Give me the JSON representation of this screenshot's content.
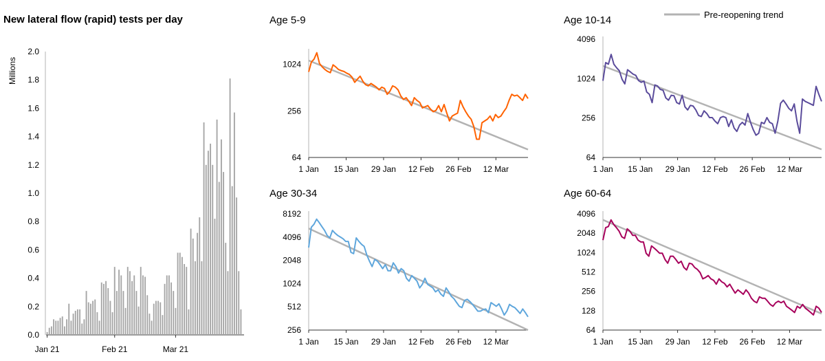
{
  "legend": {
    "label": "Pre-reopening trend",
    "color": "#b3b3b3"
  },
  "chart_data": [
    {
      "type": "bar",
      "title": "New lateral flow (rapid) tests per day",
      "ylabel": "Millions",
      "xlabel": "",
      "ylim": [
        0,
        2.0
      ],
      "yticks": [
        0.0,
        0.2,
        0.4,
        0.6,
        0.8,
        1.0,
        1.2,
        1.4,
        1.6,
        1.8,
        2.0
      ],
      "xticks": [
        "Jan 21",
        "Feb 21",
        "Mar 21"
      ],
      "color": "#a6a6a6",
      "start_date": "2021-01-01",
      "values": [
        0.02,
        0.05,
        0.06,
        0.11,
        0.1,
        0.1,
        0.12,
        0.13,
        0.06,
        0.11,
        0.22,
        0.1,
        0.15,
        0.17,
        0.18,
        0.18,
        0.08,
        0.11,
        0.31,
        0.23,
        0.22,
        0.24,
        0.25,
        0.16,
        0.1,
        0.37,
        0.36,
        0.38,
        0.33,
        0.24,
        0.16,
        0.48,
        0.31,
        0.46,
        0.42,
        0.31,
        0.19,
        0.48,
        0.45,
        0.38,
        0.42,
        0.31,
        0.2,
        0.48,
        0.42,
        0.41,
        0.28,
        0.15,
        0.1,
        0.22,
        0.24,
        0.24,
        0.23,
        0.14,
        0.36,
        0.42,
        0.42,
        0.37,
        0.31,
        0.19,
        0.58,
        0.58,
        0.55,
        0.5,
        0.48,
        0.18,
        0.75,
        0.68,
        0.52,
        0.72,
        0.83,
        0.52,
        1.5,
        1.2,
        1.3,
        1.35,
        1.2,
        0.82,
        1.52,
        1.08,
        1.38,
        1.15,
        0.65,
        0.45,
        1.81,
        1.05,
        1.57,
        0.97,
        0.45,
        0.18
      ],
      "grid": false
    },
    {
      "type": "line",
      "title": "Age 5-9",
      "scale": "log2",
      "ylim": [
        64,
        1500
      ],
      "yticks": [
        64,
        256,
        1024
      ],
      "xticks": [
        "1 Jan",
        "15 Jan",
        "29 Jan",
        "12 Feb",
        "26 Feb",
        "12 Mar"
      ],
      "xtick_days": [
        0,
        14,
        28,
        42,
        56,
        70
      ],
      "xlim_days": [
        0,
        82
      ],
      "color": "#ff6200",
      "values": [
        820,
        1100,
        1200,
        1450,
        1050,
        950,
        880,
        830,
        800,
        1010,
        950,
        880,
        850,
        830,
        790,
        760,
        700,
        600,
        660,
        720,
        620,
        560,
        540,
        580,
        550,
        520,
        480,
        520,
        500,
        420,
        460,
        540,
        520,
        480,
        400,
        360,
        380,
        340,
        300,
        380,
        350,
        330,
        280,
        290,
        300,
        270,
        250,
        260,
        300,
        250,
        310,
        240,
        190,
        220,
        230,
        240,
        350,
        290,
        250,
        220,
        200,
        160,
        110,
        110,
        180,
        190,
        200,
        220,
        190,
        230,
        210,
        220,
        250,
        280,
        350,
        420,
        400,
        410,
        380,
        350,
        420,
        370
      ],
      "trend": {
        "name": "Pre-reopening trend",
        "start": 1150,
        "end": 81
      },
      "grid": false
    },
    {
      "type": "line",
      "title": "Age 10-14",
      "scale": "log2",
      "ylim": [
        64,
        4096
      ],
      "yticks": [
        64,
        256,
        1024,
        4096
      ],
      "xticks": [
        "1 Jan",
        "15 Jan",
        "29 Jan",
        "12 Feb",
        "26 Feb",
        "12 Mar"
      ],
      "xtick_days": [
        0,
        14,
        28,
        42,
        56,
        70
      ],
      "xlim_days": [
        0,
        82
      ],
      "color": "#5a4b9b",
      "values": [
        950,
        1800,
        1700,
        2400,
        1700,
        1500,
        1350,
        1000,
        850,
        1400,
        1300,
        1200,
        1150,
        960,
        900,
        940,
        640,
        590,
        440,
        820,
        790,
        700,
        680,
        520,
        480,
        570,
        560,
        440,
        420,
        570,
        380,
        340,
        400,
        390,
        340,
        280,
        270,
        330,
        300,
        260,
        260,
        230,
        210,
        260,
        270,
        260,
        190,
        240,
        180,
        160,
        200,
        220,
        200,
        300,
        220,
        170,
        140,
        150,
        220,
        210,
        260,
        220,
        210,
        150,
        230,
        430,
        480,
        420,
        360,
        330,
        420,
        230,
        150,
        500,
        460,
        440,
        420,
        400,
        780,
        590,
        460
      ],
      "trend": {
        "name": "Pre-reopening trend",
        "start": 1600,
        "end": 85
      },
      "grid": false
    },
    {
      "type": "line",
      "title": "Age 30-34",
      "scale": "log2",
      "ylim": [
        256,
        8192
      ],
      "yticks": [
        256,
        512,
        1024,
        2048,
        4096,
        8192
      ],
      "xticks": [
        "1 Jan",
        "15 Jan",
        "29 Jan",
        "12 Feb",
        "26 Feb",
        "12 Mar"
      ],
      "xtick_days": [
        0,
        14,
        28,
        42,
        56,
        70
      ],
      "xlim_days": [
        0,
        82
      ],
      "color": "#5ea6dc",
      "values": [
        3000,
        5500,
        6000,
        7000,
        6300,
        5600,
        5000,
        4300,
        4000,
        5000,
        4600,
        4300,
        4100,
        3900,
        3600,
        3600,
        2600,
        2500,
        4000,
        3600,
        3300,
        3100,
        2400,
        2000,
        1700,
        2100,
        2000,
        1800,
        1600,
        1800,
        1500,
        1500,
        1900,
        1700,
        1400,
        1600,
        1500,
        1200,
        1100,
        1300,
        1200,
        1100,
        900,
        1000,
        1200,
        1000,
        950,
        900,
        800,
        850,
        750,
        700,
        900,
        800,
        700,
        650,
        580,
        520,
        500,
        620,
        640,
        600,
        550,
        500,
        450,
        450,
        470,
        480,
        430,
        580,
        550,
        520,
        560,
        480,
        400,
        450,
        550,
        520,
        500,
        460,
        420,
        480,
        430,
        380
      ],
      "trend": {
        "name": "Pre-reopening trend",
        "start": 5300,
        "end": 256
      },
      "grid": false
    },
    {
      "type": "line",
      "title": "Age 60-64",
      "scale": "log2",
      "ylim": [
        64,
        4096
      ],
      "yticks": [
        64,
        128,
        256,
        512,
        1024,
        2048,
        4096
      ],
      "xticks": [
        "1 Jan",
        "15 Jan",
        "29 Jan",
        "12 Feb",
        "26 Feb",
        "12 Mar"
      ],
      "xtick_days": [
        0,
        14,
        28,
        42,
        56,
        70
      ],
      "xlim_days": [
        0,
        82
      ],
      "color": "#a7005b",
      "values": [
        1600,
        2500,
        2600,
        3300,
        2800,
        2500,
        2200,
        1800,
        1700,
        2400,
        2200,
        1900,
        1900,
        1600,
        1500,
        1500,
        1000,
        900,
        1300,
        1200,
        1100,
        1000,
        1000,
        800,
        700,
        900,
        900,
        800,
        700,
        750,
        600,
        550,
        700,
        680,
        600,
        560,
        500,
        400,
        420,
        450,
        400,
        380,
        330,
        400,
        360,
        340,
        300,
        330,
        280,
        240,
        270,
        250,
        230,
        270,
        240,
        200,
        180,
        170,
        210,
        200,
        200,
        180,
        160,
        150,
        170,
        180,
        170,
        180,
        150,
        140,
        130,
        120,
        150,
        140,
        160,
        140,
        130,
        120,
        110,
        150,
        140,
        120
      ],
      "trend": {
        "name": "Pre-reopening trend",
        "start": 3300,
        "end": 115
      },
      "grid": false
    }
  ]
}
